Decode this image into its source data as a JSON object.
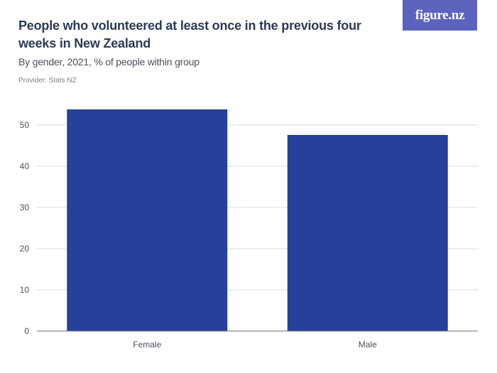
{
  "brand": {
    "logo_text": "figure.nz",
    "color": "#5b63bd"
  },
  "header": {
    "title": "People who volunteered at least once in the previous four weeks in New Zealand",
    "subtitle": "By gender, 2021, % of people within group",
    "provider": "Provider: Stats NZ"
  },
  "chart_data": {
    "type": "bar",
    "title": "People who volunteered at least once in the previous four weeks in New Zealand",
    "subtitle": "By gender, 2021, % of people within group",
    "xlabel": "",
    "ylabel": "",
    "categories": [
      "Female",
      "Male"
    ],
    "values": [
      53.8,
      47.6
    ],
    "ylim": [
      0,
      55
    ],
    "yticks": [
      0,
      10,
      20,
      30,
      40,
      50
    ],
    "grid": true,
    "bar_color": "#26419a"
  }
}
